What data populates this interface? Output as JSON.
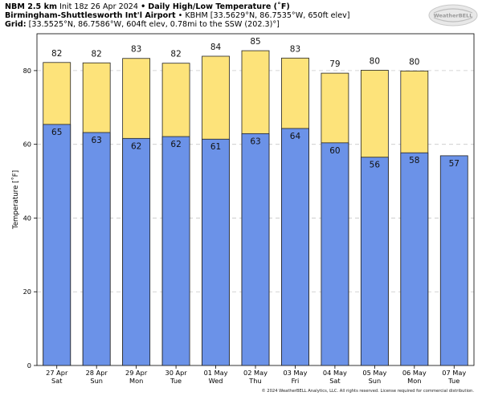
{
  "header": {
    "line1_model": "NBM 2.5 km",
    "line1_init": "Init 18z 26 Apr 2024",
    "line1_sep": "•",
    "line1_title": "Daily High/Low Temperature (˚F)",
    "line2_station": "Birmingham-Shuttlesworth Int'l Airport",
    "line2_sep": "•",
    "line2_info": "KBHM [33.5629°N, 86.7535°W, 650ft elev]",
    "line3_label": "Grid:",
    "line3_info": "[33.5525°N, 86.7586°W, 604ft elev, 0.78mi to the SSW (202.3)°]"
  },
  "logo": {
    "text": "WeatherBELL"
  },
  "footer": {
    "text": "© 2024 WeatherBELL Analytics, LLC. All rights reserved. License required for commercial distribution."
  },
  "chart_data": {
    "type": "bar",
    "ylabel": "Temperature [˚F]",
    "ylim": [
      0,
      90
    ],
    "yticks": [
      0,
      20,
      40,
      60,
      80
    ],
    "grid": true,
    "categories": [
      [
        "27 Apr",
        "Sat"
      ],
      [
        "28 Apr",
        "Sun"
      ],
      [
        "29 Apr",
        "Mon"
      ],
      [
        "30 Apr",
        "Tue"
      ],
      [
        "01 May",
        "Wed"
      ],
      [
        "02 May",
        "Thu"
      ],
      [
        "03 May",
        "Fri"
      ],
      [
        "04 May",
        "Sat"
      ],
      [
        "05 May",
        "Sun"
      ],
      [
        "06 May",
        "Mon"
      ],
      [
        "07 May",
        "Tue"
      ]
    ],
    "series": [
      {
        "values": [
          82.2,
          82.1,
          83.3,
          82.0,
          83.9,
          85.4,
          83.4,
          79.3,
          80.1,
          79.9,
          null
        ],
        "labels": [
          "82",
          "82",
          "83",
          "82",
          "84",
          "85",
          "83",
          "79",
          "80",
          "80",
          ""
        ],
        "color": "#fde37a"
      },
      {
        "values": [
          65.4,
          63.2,
          61.6,
          62.1,
          61.4,
          62.9,
          64.3,
          60.4,
          56.5,
          57.7,
          56.9
        ],
        "labels": [
          "65",
          "63",
          "62",
          "62",
          "61",
          "63",
          "64",
          "60",
          "56",
          "58",
          "57"
        ],
        "color": "#6b92e8"
      }
    ]
  }
}
